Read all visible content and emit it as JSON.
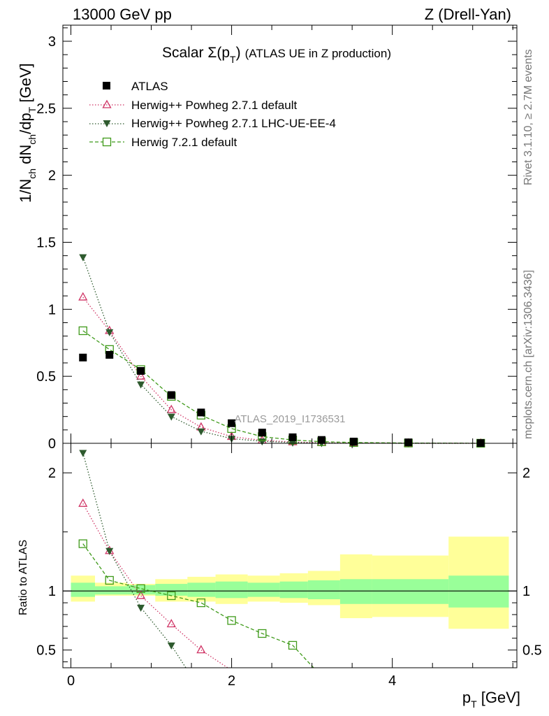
{
  "header": {
    "left": "13000 GeV pp",
    "right": "Z (Drell-Yan)"
  },
  "side_text": {
    "top": "Rivet 3.1.10, ≥ 2.7M events",
    "bottom": "mcplots.cern.ch [arXiv:1306.3436]"
  },
  "watermark": "ATLAS_2019_I1736531",
  "colors": {
    "data": "#000000",
    "powheg_default": "#d03566",
    "powheg_ue": "#2e5a2e",
    "herwig721": "#3f9a1a",
    "band_inner": "#99ff99",
    "band_outer": "#ffff99"
  },
  "chart_data": [
    {
      "type": "scatter",
      "panel": "main",
      "title_main": "Scalar Σ(p",
      "title_sub": "T",
      "title_close": ")",
      "title_rest": "(ATLAS UE in Z production)",
      "ylabel": "1/N_ch dN_ch/dp_T [GeV]",
      "ylabel_parts": {
        "a": "1/N",
        "b": "ch",
        "c": " dN",
        "d": "ch",
        "e": "/dp",
        "f": "T",
        "g": " [GeV]"
      },
      "xlim": [
        -0.1,
        5.55
      ],
      "ylim": [
        0,
        3.12
      ],
      "xticks": [
        0,
        2,
        4
      ],
      "yticks": [
        0,
        0.5,
        1,
        1.5,
        2,
        2.5,
        3
      ],
      "ytick_labels": [
        "0",
        "0.5",
        "1",
        "1.5",
        "2",
        "2.5",
        "3"
      ],
      "legend_position": "top-left",
      "series": [
        {
          "name": "ATLAS",
          "key": "data",
          "marker": "square-filled",
          "x": [
            0.15,
            0.48,
            0.87,
            1.25,
            1.62,
            2.0,
            2.38,
            2.76,
            3.12,
            3.52,
            4.2,
            5.1
          ],
          "y": [
            0.64,
            0.66,
            0.54,
            0.36,
            0.23,
            0.15,
            0.08,
            0.045,
            0.025,
            0.013,
            0.007,
            0.002
          ]
        },
        {
          "name": "Herwig++ Powheg 2.7.1 default",
          "key": "powheg_default",
          "marker": "triangle-up-open",
          "linestyle": "dotted",
          "x": [
            0.15,
            0.48,
            0.87,
            1.25,
            1.62,
            2.0,
            2.38,
            2.76,
            3.12,
            3.52,
            4.2,
            5.1
          ],
          "y": [
            1.09,
            0.84,
            0.5,
            0.25,
            0.12,
            0.05,
            0.022,
            0.01,
            0.004,
            0.002,
            0.0005,
            0.0001
          ]
        },
        {
          "name": "Herwig++ Powheg 2.7.1 LHC-UE-EE-4",
          "key": "powheg_ue",
          "marker": "triangle-down-filled",
          "linestyle": "dotted",
          "x": [
            0.15,
            0.48,
            0.87,
            1.25,
            1.62,
            2.0,
            2.38,
            2.76,
            3.12,
            3.52,
            4.2,
            5.1
          ],
          "y": [
            1.39,
            0.83,
            0.44,
            0.2,
            0.09,
            0.035,
            0.015,
            0.006,
            0.002,
            0.001,
            0.0003,
            0.0001
          ]
        },
        {
          "name": "Herwig 7.2.1 default",
          "key": "herwig721",
          "marker": "square-open",
          "linestyle": "dashed",
          "x": [
            0.15,
            0.48,
            0.87,
            1.25,
            1.62,
            2.0,
            2.38,
            2.76,
            3.12,
            3.52,
            4.2,
            5.1
          ],
          "y": [
            0.84,
            0.7,
            0.55,
            0.35,
            0.21,
            0.11,
            0.05,
            0.025,
            0.012,
            0.006,
            0.002,
            0.0005
          ]
        }
      ]
    },
    {
      "type": "line",
      "panel": "ratio",
      "ylabel": "Ratio to ATLAS",
      "xlabel_main": "p",
      "xlabel_sub": "T",
      "xlabel_unit": " [GeV]",
      "xlim": [
        -0.1,
        5.55
      ],
      "ylim": [
        0.35,
        2.25
      ],
      "xticks": [
        0,
        2,
        4
      ],
      "xtick_labels": [
        "0",
        "2",
        "4"
      ],
      "yticks": [
        0.5,
        1,
        2
      ],
      "ytick_labels": [
        "0.5",
        "1",
        "2"
      ],
      "reference_line": 1,
      "bands": {
        "bin_edges": [
          0,
          0.3,
          0.7,
          1.05,
          1.45,
          1.8,
          2.2,
          2.6,
          2.95,
          3.35,
          3.75,
          4.7,
          5.45
        ],
        "inner_low": [
          0.95,
          0.97,
          0.97,
          0.96,
          0.95,
          0.94,
          0.95,
          0.94,
          0.93,
          0.89,
          0.89,
          0.86
        ],
        "inner_high": [
          1.07,
          1.04,
          1.05,
          1.06,
          1.07,
          1.08,
          1.07,
          1.08,
          1.09,
          1.1,
          1.1,
          1.13
        ],
        "outer_low": [
          0.91,
          0.96,
          0.96,
          0.91,
          0.91,
          0.89,
          0.91,
          0.9,
          0.88,
          0.77,
          0.78,
          0.68
        ],
        "outer_high": [
          1.13,
          1.07,
          1.06,
          1.1,
          1.12,
          1.14,
          1.13,
          1.15,
          1.17,
          1.31,
          1.3,
          1.46
        ]
      },
      "series": [
        {
          "name": "Herwig++ Powheg 2.7.1 default",
          "key": "powheg_default",
          "marker": "triangle-up-open",
          "linestyle": "dotted",
          "x": [
            0.15,
            0.48,
            0.87,
            1.25,
            1.62,
            1.95
          ],
          "y": [
            1.74,
            1.34,
            0.96,
            0.72,
            0.5,
            0.35
          ]
        },
        {
          "name": "Herwig++ Powheg 2.7.1 LHC-UE-EE-4",
          "key": "powheg_ue",
          "marker": "triangle-down-filled",
          "linestyle": "dotted",
          "x": [
            0.15,
            0.48,
            0.87,
            1.25,
            1.43
          ],
          "y": [
            2.17,
            1.34,
            0.86,
            0.54,
            0.35
          ]
        },
        {
          "name": "Herwig 7.2.1 default",
          "key": "herwig721",
          "marker": "square-open",
          "linestyle": "dashed",
          "x": [
            0.15,
            0.48,
            0.87,
            1.25,
            1.62,
            2.0,
            2.38,
            2.76,
            3.02
          ],
          "y": [
            1.4,
            1.09,
            1.02,
            0.96,
            0.9,
            0.75,
            0.64,
            0.54,
            0.35
          ]
        }
      ]
    }
  ]
}
